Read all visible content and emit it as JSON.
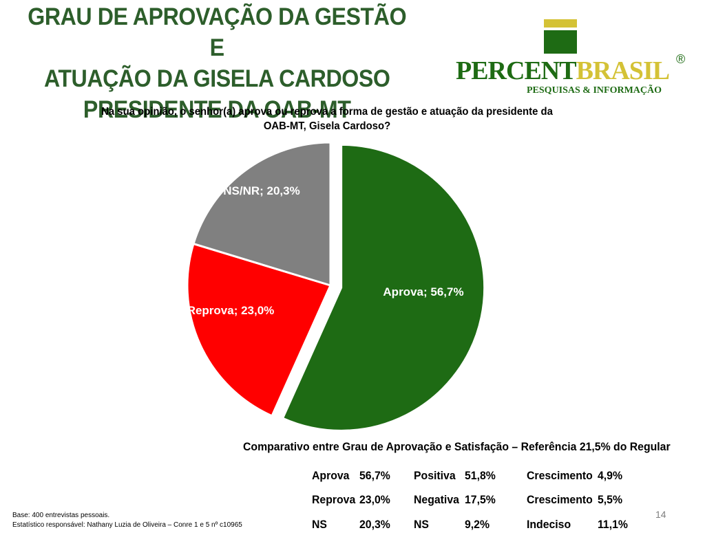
{
  "title_lines": [
    "GRAU DE APROVAÇÃO DA GESTÃO E",
    "ATUAÇÃO DA GISELA CARDOSO",
    "PRESIDENTE DA OAB-MT"
  ],
  "logo": {
    "brand_part1": "PERCENT",
    "brand_part2": "BRASIL",
    "registered": "®",
    "tagline": "PESQUISAS & INFORMAÇÃO"
  },
  "question": "Na sua opinião, o senhor(a) aprova ou reprova a forma de gestão e atuação da presidente da OAB-MT, Gisela Cardoso?",
  "chart_data": {
    "type": "pie",
    "title": "",
    "slices": [
      {
        "label": "Aprova",
        "value": 56.7,
        "display": "Aprova; 56,7%",
        "color": "#1e6b14",
        "exploded": true
      },
      {
        "label": "Reprova",
        "value": 23.0,
        "display": "Reprova; 23,0%",
        "color": "#ff0000",
        "exploded": false
      },
      {
        "label": "NS/NR",
        "value": 20.3,
        "display": "NS/NR; 20,3%",
        "color": "#808080",
        "exploded": false
      }
    ],
    "legend": "none"
  },
  "comparison": {
    "title": "Comparativo entre Grau de Aprovação e Satisfação – Referência 21,5% do Regular",
    "rows": [
      [
        {
          "label": "Aprova",
          "value": "56,7%"
        },
        {
          "label": "Positiva",
          "value": "51,8%"
        },
        {
          "label": "Crescimento",
          "value": "4,9%"
        }
      ],
      [
        {
          "label": "Reprova",
          "value": "23,0%"
        },
        {
          "label": "Negativa",
          "value": "17,5%"
        },
        {
          "label": "Crescimento",
          "value": "5,5%"
        }
      ],
      [
        {
          "label": "NS",
          "value": "20,3%"
        },
        {
          "label": "NS",
          "value": "9,2%"
        },
        {
          "label": "Indeciso",
          "value": "11,1%"
        }
      ]
    ]
  },
  "footer": {
    "base": "Base: 400 entrevistas pessoais.",
    "responsible": "Estatístico responsável: Nathany Luzia de Oliveira – Conre 1 e 5 nº c10965"
  },
  "page_number": "14",
  "colors": {
    "title": "#2d5e2b",
    "logo_green": "#1e6b14",
    "logo_gold": "#d4c236"
  }
}
